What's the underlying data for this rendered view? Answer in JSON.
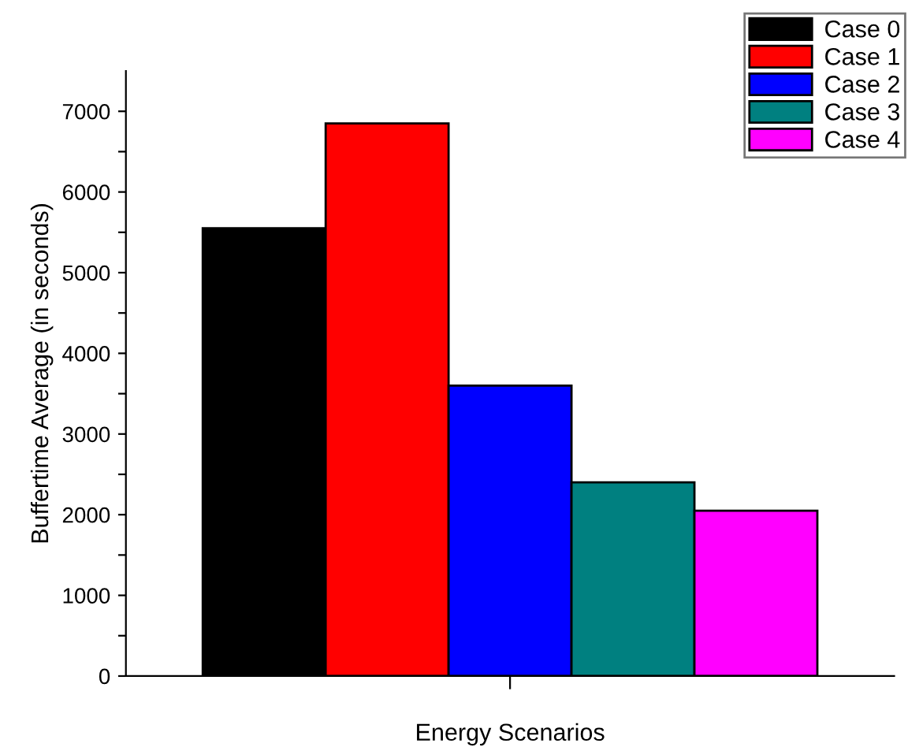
{
  "chart_data": {
    "type": "bar",
    "xlabel": "Energy Scenarios",
    "ylabel": "Buffertime Average (in seconds)",
    "categories": [
      null
    ],
    "series": [
      {
        "name": "Case 0",
        "color": "#000000",
        "values": [
          5550
        ]
      },
      {
        "name": "Case 1",
        "color": "#ff0000",
        "values": [
          6850
        ]
      },
      {
        "name": "Case 2",
        "color": "#0000ff",
        "values": [
          3600
        ]
      },
      {
        "name": "Case 3",
        "color": "#008080",
        "values": [
          2400
        ]
      },
      {
        "name": "Case 4",
        "color": "#ff00ff",
        "values": [
          2050
        ]
      }
    ],
    "ylim": [
      0,
      7500
    ],
    "yticks": [
      0,
      {
        "value": 500,
        "label": null
      },
      1000,
      {
        "value": 1500,
        "label": null
      },
      2000,
      {
        "value": 2500,
        "label": null
      },
      3000,
      {
        "value": 3500,
        "label": null
      },
      4000,
      {
        "value": 4500,
        "label": null
      },
      5000,
      {
        "value": 5500,
        "label": null
      },
      6000,
      {
        "value": 6500,
        "label": null
      },
      7000
    ],
    "legend": "top right",
    "grid": false
  }
}
